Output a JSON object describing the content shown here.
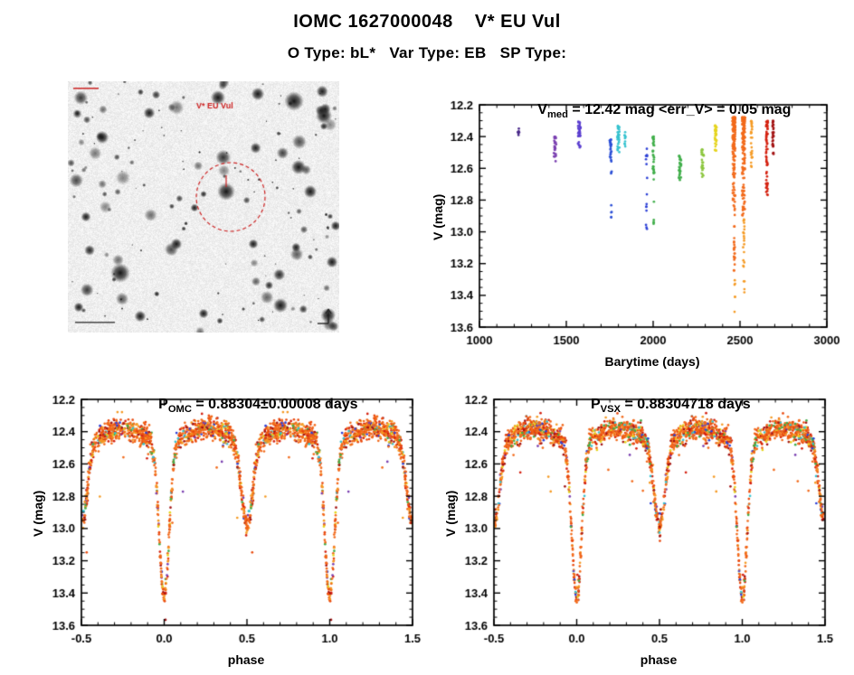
{
  "page": {
    "title": "IOMC 1627000048    V* EU Vul",
    "subtitle": "O Type: bL*   Var Type: EB   SP Type:"
  },
  "finder": {
    "target_label": "V* EU Vul",
    "marker_color": "#cc2222",
    "seed": 7,
    "star_count": 150
  },
  "chart_data": [
    {
      "id": "lightcurve_time",
      "type": "scatter",
      "title": {
        "prefix": "V",
        "sub": "med",
        "rest": " = 12.42 mag <err_V> = 0.05 mag"
      },
      "xlabel": "Barytime (days)",
      "ylabel": "V (mag)",
      "xlim": [
        1000,
        3000
      ],
      "ylim": [
        12.2,
        13.6
      ],
      "y_inverted": true,
      "xticks": [
        1000,
        1500,
        2000,
        2500,
        3000
      ],
      "yticks": [
        12.2,
        12.4,
        12.6,
        12.8,
        13.0,
        13.2,
        13.4,
        13.6
      ],
      "x_minor": 100,
      "y_minor": 0.05,
      "x_fmt": "d0",
      "y_fmt": "d1",
      "seed": 11,
      "clusters": [
        {
          "x": 1225,
          "xw": 10,
          "color": "#4a2a8a",
          "ymin": 12.34,
          "ymax": 12.4,
          "n": 8,
          "bias": 1
        },
        {
          "x": 1435,
          "xw": 14,
          "color": "#7a3fb0",
          "ymin": 12.4,
          "ymax": 12.56,
          "n": 26,
          "bias": 1.4
        },
        {
          "x": 1575,
          "xw": 16,
          "color": "#5b3fd0",
          "ymin": 12.3,
          "ymax": 12.47,
          "n": 30,
          "bias": 1.3
        },
        {
          "x": 1755,
          "xw": 10,
          "color": "#2b4fd6",
          "ymin": 12.42,
          "ymax": 12.56,
          "n": 24,
          "bias": 1.3
        },
        {
          "x": 1760,
          "xw": 4,
          "color": "#2b4fd6",
          "ymin": 12.58,
          "ymax": 12.98,
          "n": 8,
          "bias": 1
        },
        {
          "x": 1800,
          "xw": 12,
          "color": "#35c2cf",
          "ymin": 12.33,
          "ymax": 12.5,
          "n": 30,
          "bias": 1.4
        },
        {
          "x": 1838,
          "xw": 6,
          "color": "#35c2cf",
          "ymin": 12.37,
          "ymax": 12.47,
          "n": 10,
          "bias": 1
        },
        {
          "x": 1962,
          "xw": 8,
          "color": "#2b3fd6",
          "ymin": 12.45,
          "ymax": 13.0,
          "n": 16,
          "bias": 1
        },
        {
          "x": 2002,
          "xw": 10,
          "color": "#3fae49",
          "ymin": 12.4,
          "ymax": 12.62,
          "n": 26,
          "bias": 1.5
        },
        {
          "x": 2005,
          "xw": 5,
          "color": "#3fae49",
          "ymin": 12.62,
          "ymax": 13.0,
          "n": 10,
          "bias": 1
        },
        {
          "x": 2155,
          "xw": 14,
          "color": "#3fae49",
          "ymin": 12.52,
          "ymax": 12.68,
          "n": 26,
          "bias": 1.2
        },
        {
          "x": 2285,
          "xw": 14,
          "color": "#8cc63e",
          "ymin": 12.48,
          "ymax": 12.66,
          "n": 26,
          "bias": 1.2
        },
        {
          "x": 2360,
          "xw": 10,
          "color": "#e5d41e",
          "ymin": 12.33,
          "ymax": 12.5,
          "n": 30,
          "bias": 1.4
        },
        {
          "x": 2465,
          "xw": 16,
          "color": "#f26a1b",
          "ymin": 12.28,
          "ymax": 12.8,
          "n": 170,
          "bias": 2.6
        },
        {
          "x": 2467,
          "xw": 8,
          "color": "#f26a1b",
          "ymin": 12.8,
          "ymax": 13.25,
          "n": 26,
          "bias": 1.2
        },
        {
          "x": 2470,
          "xw": 4,
          "color": "#f59a23",
          "ymin": 13.25,
          "ymax": 13.52,
          "n": 6,
          "bias": 1
        },
        {
          "x": 2520,
          "xw": 16,
          "color": "#f26a1b",
          "ymin": 12.28,
          "ymax": 12.92,
          "n": 170,
          "bias": 2.6
        },
        {
          "x": 2522,
          "xw": 8,
          "color": "#f59a23",
          "ymin": 12.92,
          "ymax": 13.22,
          "n": 18,
          "bias": 1.2
        },
        {
          "x": 2524,
          "xw": 4,
          "color": "#f59a23",
          "ymin": 13.3,
          "ymax": 13.55,
          "n": 4,
          "bias": 1
        },
        {
          "x": 2566,
          "xw": 8,
          "color": "#f59a23",
          "ymin": 12.3,
          "ymax": 12.6,
          "n": 28,
          "bias": 1.6
        },
        {
          "x": 2655,
          "xw": 10,
          "color": "#d4200f",
          "ymin": 12.3,
          "ymax": 12.78,
          "n": 60,
          "bias": 2.0
        },
        {
          "x": 2690,
          "xw": 8,
          "color": "#a31313",
          "ymin": 12.3,
          "ymax": 12.55,
          "n": 28,
          "bias": 1.5
        }
      ]
    },
    {
      "id": "phase_omc",
      "type": "scatter",
      "title": {
        "prefix": "P",
        "sub": "OMC",
        "rest": " = 0.88304±0.00008 days"
      },
      "xlabel": "phase",
      "ylabel": "V (mag)",
      "xlim": [
        -0.5,
        1.5
      ],
      "ylim": [
        12.2,
        13.6
      ],
      "y_inverted": true,
      "xticks": [
        -0.5,
        0.0,
        0.5,
        1.0,
        1.5
      ],
      "yticks": [
        12.2,
        12.4,
        12.6,
        12.8,
        13.0,
        13.2,
        13.4,
        13.6
      ],
      "x_minor": 0.1,
      "y_minor": 0.05,
      "x_fmt": "d1",
      "y_fmt": "d1",
      "model": {
        "seed": 42,
        "n_points": 1200,
        "baseline": 12.42,
        "ellipsoidal": 0.04,
        "primary_depth": 0.97,
        "primary_sigma": 0.042,
        "secondary_depth": 0.52,
        "secondary_sigma": 0.048,
        "noise": 0.034,
        "outlier_rate": 0.012
      },
      "palette": [
        {
          "color": "#f26a1b",
          "w": 0.4
        },
        {
          "color": "#ea4a0e",
          "w": 0.18
        },
        {
          "color": "#f59a23",
          "w": 0.12
        },
        {
          "color": "#d4200f",
          "w": 0.08
        },
        {
          "color": "#a31313",
          "w": 0.05
        },
        {
          "color": "#e5d41e",
          "w": 0.045
        },
        {
          "color": "#3fae49",
          "w": 0.045
        },
        {
          "color": "#35c2cf",
          "w": 0.03
        },
        {
          "color": "#2b3fd6",
          "w": 0.025
        },
        {
          "color": "#7a3fb0",
          "w": 0.025
        }
      ]
    },
    {
      "id": "phase_vsx",
      "type": "scatter",
      "title": {
        "prefix": "P",
        "sub": "VSX",
        "rest": " = 0.88304718 days"
      },
      "xlabel": "phase",
      "ylabel": "V (mag)",
      "xlim": [
        -0.5,
        1.5
      ],
      "ylim": [
        12.2,
        13.6
      ],
      "y_inverted": true,
      "xticks": [
        -0.5,
        0.0,
        0.5,
        1.0,
        1.5
      ],
      "yticks": [
        12.2,
        12.4,
        12.6,
        12.8,
        13.0,
        13.2,
        13.4,
        13.6
      ],
      "x_minor": 0.1,
      "y_minor": 0.05,
      "x_fmt": "d1",
      "y_fmt": "d1",
      "model": {
        "seed": 77,
        "n_points": 1200,
        "baseline": 12.42,
        "ellipsoidal": 0.04,
        "primary_depth": 0.97,
        "primary_sigma": 0.042,
        "secondary_depth": 0.52,
        "secondary_sigma": 0.048,
        "noise": 0.034,
        "outlier_rate": 0.012
      },
      "palette": [
        {
          "color": "#f26a1b",
          "w": 0.4
        },
        {
          "color": "#ea4a0e",
          "w": 0.18
        },
        {
          "color": "#f59a23",
          "w": 0.12
        },
        {
          "color": "#d4200f",
          "w": 0.08
        },
        {
          "color": "#a31313",
          "w": 0.05
        },
        {
          "color": "#e5d41e",
          "w": 0.045
        },
        {
          "color": "#3fae49",
          "w": 0.045
        },
        {
          "color": "#35c2cf",
          "w": 0.03
        },
        {
          "color": "#2b3fd6",
          "w": 0.025
        },
        {
          "color": "#7a3fb0",
          "w": 0.025
        }
      ]
    }
  ]
}
